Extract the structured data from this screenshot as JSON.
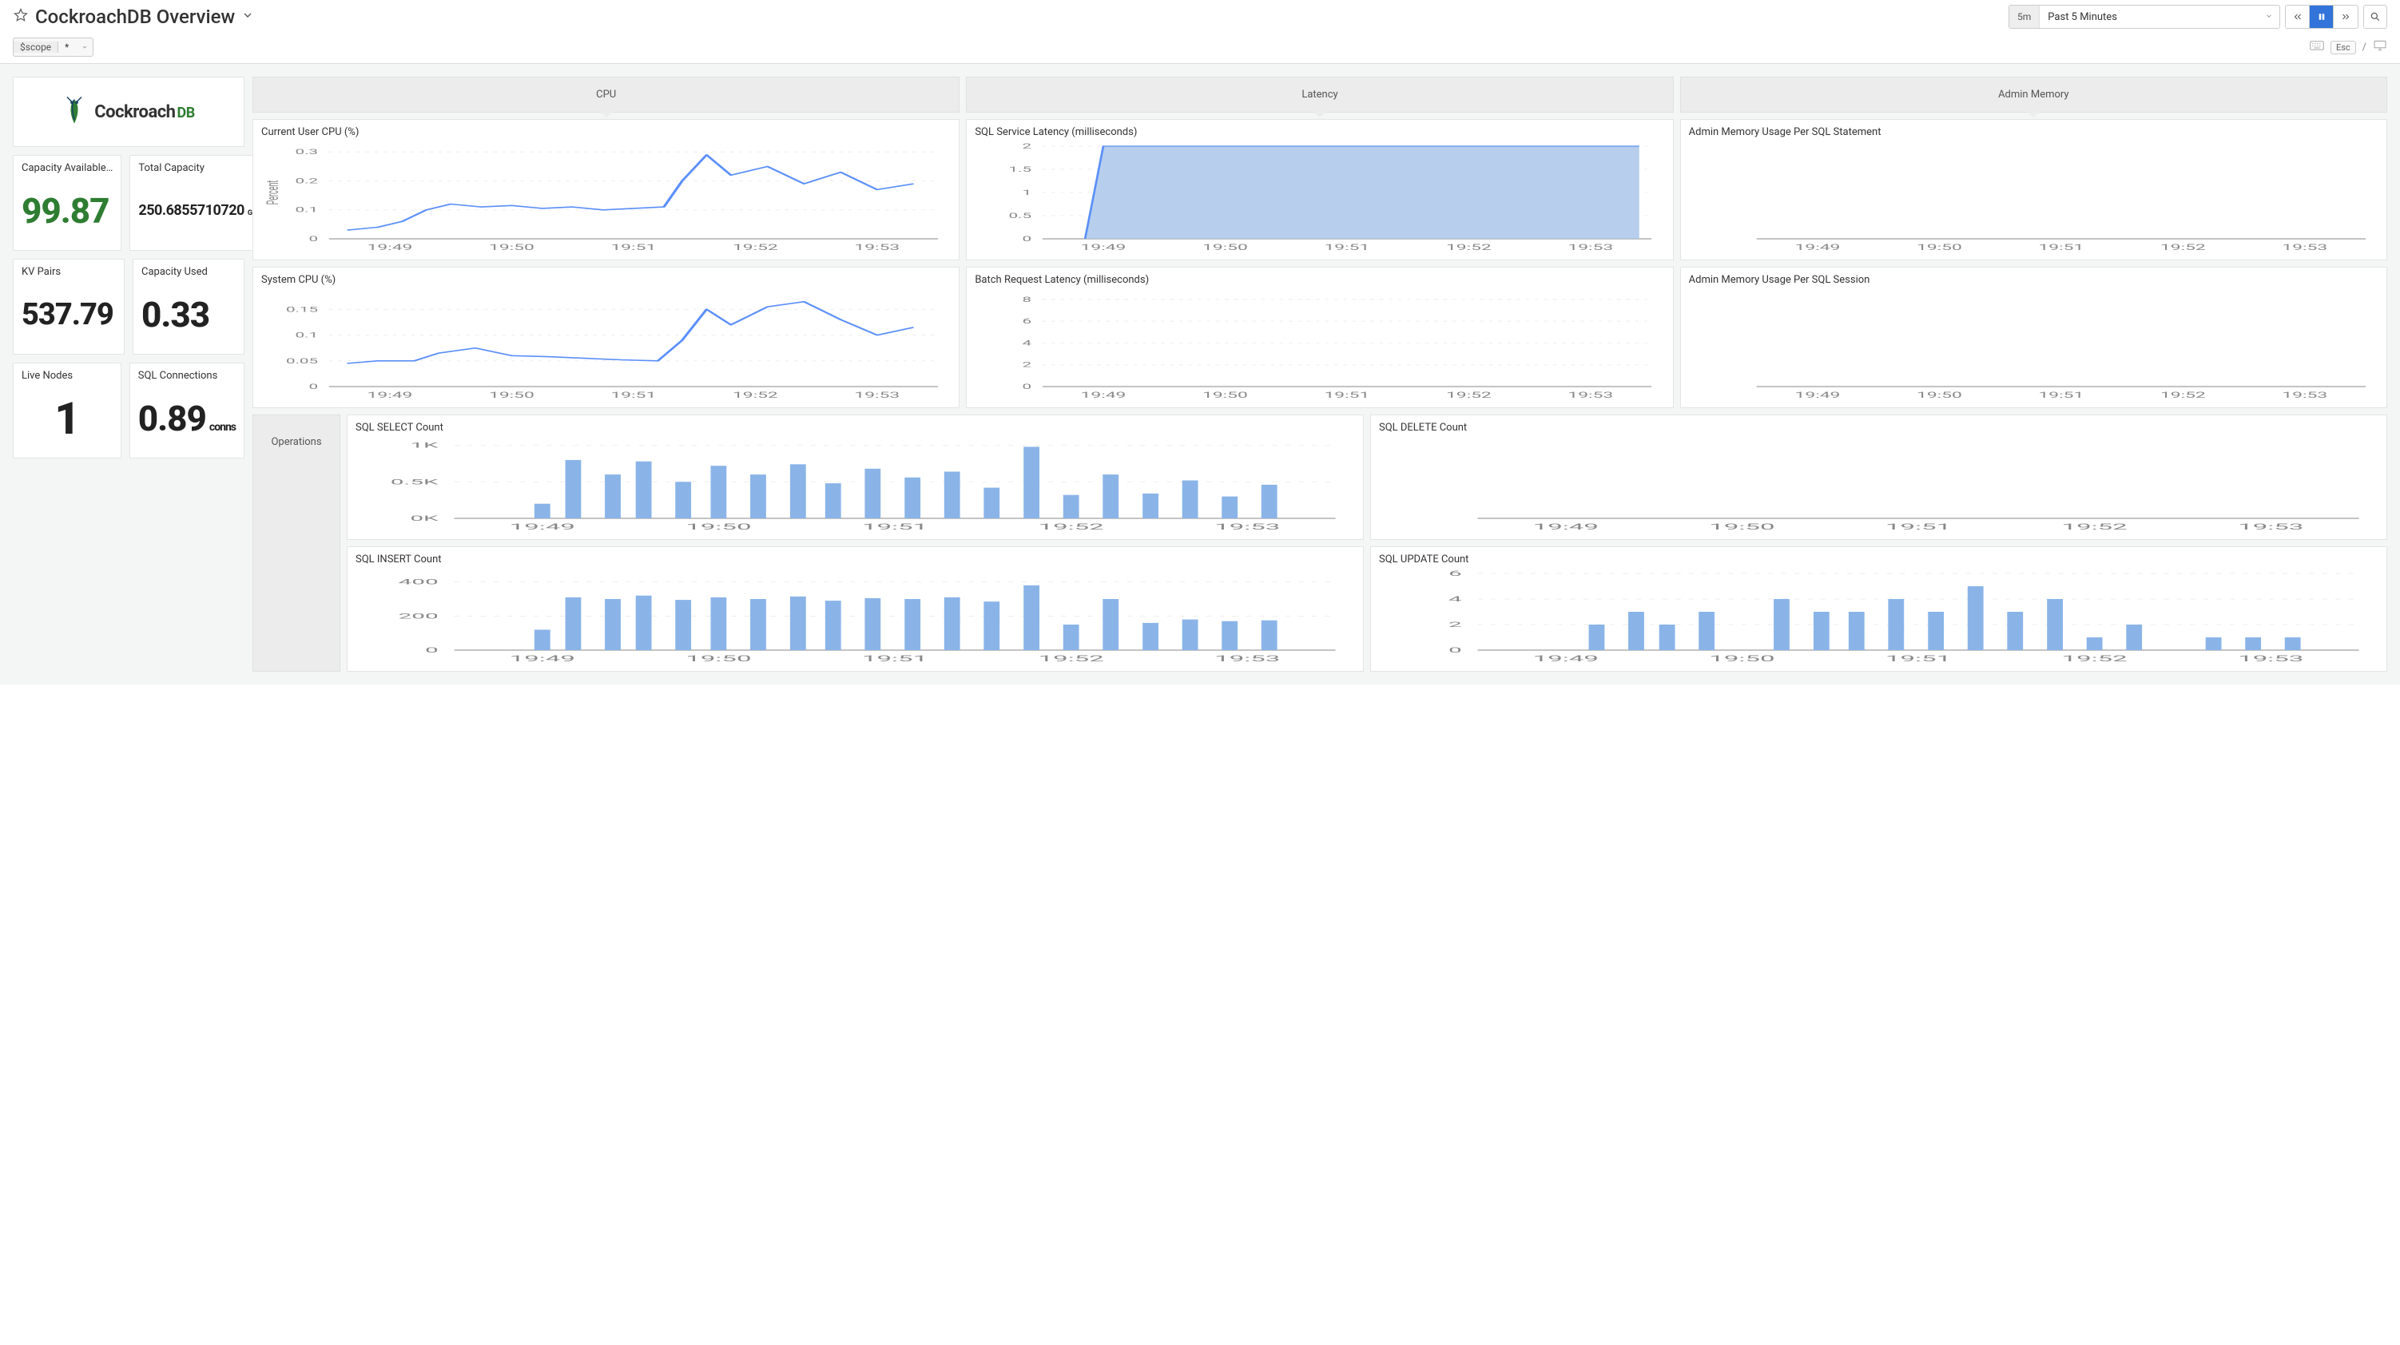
{
  "header": {
    "title": "CockroachDB Overview",
    "time_badge": "5m",
    "time_range_label": "Past 5 Minutes",
    "esc_label": "Esc"
  },
  "vars": {
    "name": "$scope",
    "value": "*"
  },
  "logo": {
    "brand": "Cockroach",
    "suffix": "DB",
    "bug_color": "#2e7d32",
    "bug_accent": "#1a4468"
  },
  "colors": {
    "panel_border": "#e4e4e4",
    "section_bg": "#ececec",
    "bg_body": "#f4f5f5",
    "axis": "#888888",
    "grid": "#eeeeee",
    "tick_text": "#888888",
    "line_blue": "#5b8ff9",
    "area_blue_fill": "#aac7ea",
    "area_blue_stroke": "#5b8ff9",
    "bar_blue": "#8ab4e8"
  },
  "stats": {
    "capacity_available": {
      "title": "Capacity Available…",
      "value": "99.87",
      "color": "green",
      "size": "big"
    },
    "total_capacity": {
      "title": "Total Capacity",
      "value": "250.6855710720",
      "unit": "GB",
      "color": "dark",
      "size": "small"
    },
    "kv_pairs": {
      "title": "KV Pairs",
      "value": "537.79",
      "color": "dark",
      "size": "big"
    },
    "capacity_used": {
      "title": "Capacity Used",
      "value": "0.33",
      "color": "dark",
      "size": "big"
    },
    "live_nodes": {
      "title": "Live Nodes",
      "value": "1",
      "color": "dark",
      "size": "big",
      "center": true
    },
    "sql_connections": {
      "title": "SQL Connections",
      "value": "0.89",
      "unit": "conns",
      "color": "dark",
      "size": "big"
    }
  },
  "sections": {
    "cpu": "CPU",
    "latency": "Latency",
    "admin_mem": "Admin Memory",
    "ops": "Operations"
  },
  "x_axis": {
    "labels": [
      "19:49",
      "19:50",
      "19:51",
      "19:52",
      "19:53"
    ],
    "positions": [
      0.1,
      0.3,
      0.5,
      0.7,
      0.9
    ],
    "fontsize": 10
  },
  "charts": {
    "user_cpu": {
      "type": "line",
      "title": "Current User CPU (%)",
      "ylabel": "Percent",
      "ylabel_fontsize": 9,
      "yticks": [
        0,
        0.1,
        0.2,
        0.3
      ],
      "ylim": [
        0,
        0.32
      ],
      "series": [
        {
          "color_key": "line_blue",
          "width": 1.6,
          "points": [
            [
              0.03,
              0.03
            ],
            [
              0.08,
              0.04
            ],
            [
              0.12,
              0.06
            ],
            [
              0.16,
              0.1
            ],
            [
              0.2,
              0.12
            ],
            [
              0.25,
              0.11
            ],
            [
              0.3,
              0.115
            ],
            [
              0.35,
              0.105
            ],
            [
              0.4,
              0.11
            ],
            [
              0.45,
              0.1
            ],
            [
              0.5,
              0.105
            ],
            [
              0.55,
              0.11
            ],
            [
              0.58,
              0.2
            ],
            [
              0.62,
              0.29
            ],
            [
              0.66,
              0.22
            ],
            [
              0.72,
              0.25
            ],
            [
              0.78,
              0.19
            ],
            [
              0.84,
              0.23
            ],
            [
              0.9,
              0.17
            ],
            [
              0.96,
              0.19
            ]
          ]
        }
      ]
    },
    "system_cpu": {
      "type": "line",
      "title": "System CPU (%)",
      "yticks": [
        0,
        0.05,
        0.1,
        0.15
      ],
      "ylim": [
        0,
        0.18
      ],
      "series": [
        {
          "color_key": "line_blue",
          "width": 1.6,
          "points": [
            [
              0.03,
              0.045
            ],
            [
              0.08,
              0.05
            ],
            [
              0.14,
              0.05
            ],
            [
              0.18,
              0.065
            ],
            [
              0.24,
              0.075
            ],
            [
              0.3,
              0.06
            ],
            [
              0.36,
              0.058
            ],
            [
              0.42,
              0.055
            ],
            [
              0.48,
              0.052
            ],
            [
              0.54,
              0.05
            ],
            [
              0.58,
              0.09
            ],
            [
              0.62,
              0.15
            ],
            [
              0.66,
              0.12
            ],
            [
              0.72,
              0.155
            ],
            [
              0.78,
              0.165
            ],
            [
              0.84,
              0.13
            ],
            [
              0.9,
              0.1
            ],
            [
              0.96,
              0.115
            ]
          ]
        }
      ]
    },
    "sql_latency": {
      "type": "area",
      "title": "SQL Service Latency (milliseconds)",
      "yticks": [
        0,
        0.5,
        1,
        1.5,
        2
      ],
      "ylim": [
        0,
        2
      ],
      "series": [
        {
          "fill_key": "area_blue_fill",
          "stroke_key": "area_blue_stroke",
          "width": 1.2,
          "points": [
            [
              0.07,
              0
            ],
            [
              0.1,
              2
            ],
            [
              0.98,
              2
            ]
          ]
        }
      ]
    },
    "batch_latency": {
      "type": "line",
      "title": "Batch Request Latency (milliseconds)",
      "yticks": [
        0,
        2,
        4,
        6,
        8
      ],
      "ylim": [
        0,
        8.5
      ],
      "series": []
    },
    "admin_per_stmt": {
      "type": "line",
      "title": "Admin Memory Usage Per SQL Statement",
      "yticks": [],
      "ylim": [
        0,
        1
      ],
      "series": []
    },
    "admin_per_sess": {
      "type": "line",
      "title": "Admin Memory Usage Per SQL Session",
      "yticks": [],
      "ylim": [
        0,
        1
      ],
      "series": []
    },
    "sql_select": {
      "type": "bar",
      "title": "SQL SELECT Count",
      "yticks_labels": [
        "0K",
        "0.5K",
        "1K"
      ],
      "yticks": [
        0,
        500,
        1000
      ],
      "ylim": [
        0,
        1050
      ],
      "bars": {
        "color_key": "bar_blue",
        "width": 0.018,
        "values": [
          [
            0.1,
            200
          ],
          [
            0.135,
            800
          ],
          [
            0.18,
            600
          ],
          [
            0.215,
            780
          ],
          [
            0.26,
            500
          ],
          [
            0.3,
            720
          ],
          [
            0.345,
            600
          ],
          [
            0.39,
            740
          ],
          [
            0.43,
            480
          ],
          [
            0.475,
            680
          ],
          [
            0.52,
            560
          ],
          [
            0.565,
            640
          ],
          [
            0.61,
            420
          ],
          [
            0.655,
            980
          ],
          [
            0.7,
            320
          ],
          [
            0.745,
            600
          ],
          [
            0.79,
            340
          ],
          [
            0.835,
            520
          ],
          [
            0.88,
            300
          ],
          [
            0.925,
            460
          ]
        ]
      }
    },
    "sql_delete": {
      "type": "bar",
      "title": "SQL DELETE Count",
      "yticks": [],
      "ylim": [
        0,
        1
      ],
      "bars": {
        "color_key": "bar_blue",
        "width": 0.018,
        "values": []
      }
    },
    "sql_insert": {
      "type": "bar",
      "title": "SQL INSERT Count",
      "yticks": [
        0,
        200,
        400
      ],
      "ylim": [
        0,
        450
      ],
      "bars": {
        "color_key": "bar_blue",
        "width": 0.018,
        "values": [
          [
            0.1,
            120
          ],
          [
            0.135,
            310
          ],
          [
            0.18,
            300
          ],
          [
            0.215,
            320
          ],
          [
            0.26,
            295
          ],
          [
            0.3,
            310
          ],
          [
            0.345,
            300
          ],
          [
            0.39,
            315
          ],
          [
            0.43,
            290
          ],
          [
            0.475,
            305
          ],
          [
            0.52,
            300
          ],
          [
            0.565,
            310
          ],
          [
            0.61,
            285
          ],
          [
            0.655,
            380
          ],
          [
            0.7,
            150
          ],
          [
            0.745,
            300
          ],
          [
            0.79,
            160
          ],
          [
            0.835,
            180
          ],
          [
            0.88,
            170
          ],
          [
            0.925,
            175
          ]
        ]
      }
    },
    "sql_update": {
      "type": "bar",
      "title": "SQL UPDATE Count",
      "yticks": [
        0,
        2,
        4,
        6
      ],
      "ylim": [
        0,
        6
      ],
      "bars": {
        "color_key": "bar_blue",
        "width": 0.018,
        "values": [
          [
            0.135,
            2
          ],
          [
            0.18,
            3
          ],
          [
            0.215,
            2
          ],
          [
            0.26,
            3
          ],
          [
            0.345,
            4
          ],
          [
            0.39,
            3
          ],
          [
            0.43,
            3
          ],
          [
            0.475,
            4
          ],
          [
            0.52,
            3
          ],
          [
            0.565,
            5
          ],
          [
            0.61,
            3
          ],
          [
            0.655,
            4
          ],
          [
            0.7,
            1
          ],
          [
            0.745,
            2
          ],
          [
            0.835,
            1
          ],
          [
            0.88,
            1
          ],
          [
            0.925,
            1
          ]
        ]
      }
    }
  }
}
